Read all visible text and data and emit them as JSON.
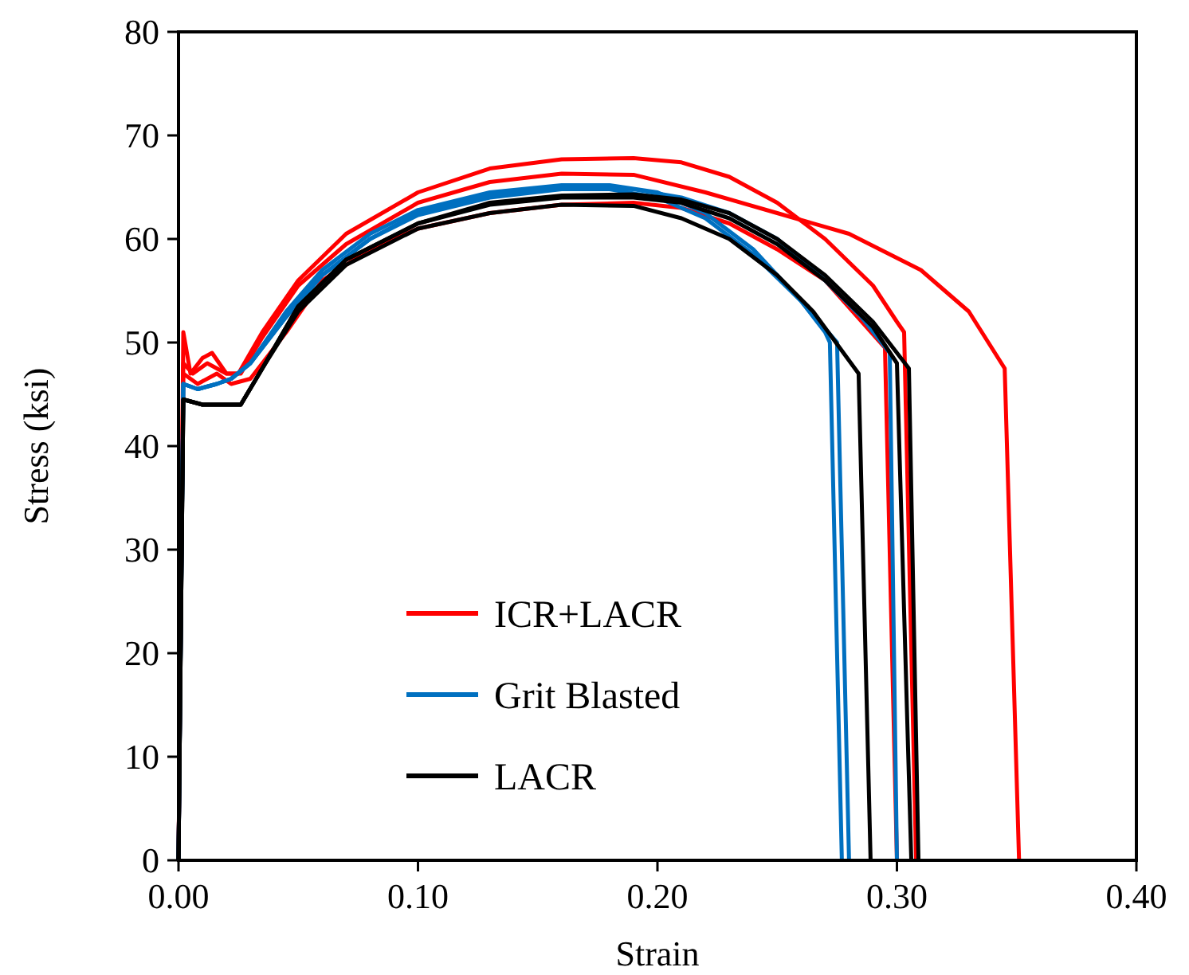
{
  "chart_data": {
    "type": "line",
    "xlabel": "Strain",
    "ylabel": "Stress (ksi)",
    "xlim": [
      0,
      0.4
    ],
    "ylim": [
      0,
      80
    ],
    "xticks": [
      {
        "value": 0,
        "label": "0.00"
      },
      {
        "value": 0.1,
        "label": "0.10"
      },
      {
        "value": 0.2,
        "label": "0.20"
      },
      {
        "value": 0.3,
        "label": "0.30"
      },
      {
        "value": 0.4,
        "label": "0.40"
      }
    ],
    "yticks": [
      0,
      10,
      20,
      30,
      40,
      50,
      60,
      70,
      80
    ],
    "grid": false,
    "legend": "bottom",
    "marker": "none",
    "line_style": "solid",
    "series": [
      {
        "name": "ICR+LACR",
        "color": "#ff0000",
        "x": [
          0,
          0.002,
          0.005,
          0.01,
          0.014,
          0.02,
          0.025,
          0.035,
          0.05,
          0.07,
          0.1,
          0.13,
          0.16,
          0.19,
          0.21,
          0.23,
          0.25,
          0.27,
          0.29,
          0.3,
          0.303,
          0.308
        ],
        "values": [
          0,
          51,
          47,
          48.5,
          49,
          47,
          47,
          51,
          56,
          60.5,
          64.5,
          66.8,
          67.7,
          67.8,
          67.4,
          66,
          63.5,
          60,
          55.5,
          52,
          51,
          0
        ]
      },
      {
        "color": "#ff0000",
        "x": [
          0,
          0.002,
          0.006,
          0.012,
          0.02,
          0.026,
          0.035,
          0.05,
          0.07,
          0.1,
          0.13,
          0.16,
          0.19,
          0.22,
          0.25,
          0.28,
          0.31,
          0.33,
          0.345,
          0.351
        ],
        "values": [
          0,
          48,
          47,
          48,
          47,
          47,
          50.5,
          55.5,
          59.5,
          63.5,
          65.5,
          66.3,
          66.2,
          64.5,
          62.5,
          60.5,
          57,
          53,
          47.5,
          0
        ]
      },
      {
        "color": "#ff0000",
        "x": [
          0,
          0.002,
          0.008,
          0.016,
          0.022,
          0.03,
          0.045,
          0.06,
          0.08,
          0.1,
          0.13,
          0.16,
          0.19,
          0.21,
          0.23,
          0.25,
          0.27,
          0.295,
          0.3
        ],
        "values": [
          0,
          47,
          46,
          47,
          46,
          46.5,
          51,
          56,
          59,
          61,
          62.5,
          63.3,
          63.5,
          63,
          61.5,
          59,
          56,
          49.5,
          0
        ]
      },
      {
        "name": "Grit Blasted",
        "color": "#0070c0",
        "x": [
          0,
          0.002,
          0.008,
          0.016,
          0.022,
          0.03,
          0.045,
          0.06,
          0.08,
          0.1,
          0.13,
          0.16,
          0.18,
          0.2,
          0.22,
          0.24,
          0.26,
          0.27,
          0.272,
          0.277
        ],
        "values": [
          0,
          46,
          45.5,
          46,
          46.5,
          48,
          53,
          57,
          60.5,
          62.8,
          64.5,
          65.2,
          65.2,
          64.5,
          62.5,
          59,
          54,
          51,
          50,
          0
        ]
      },
      {
        "color": "#0070c0",
        "x": [
          0,
          0.002,
          0.008,
          0.016,
          0.022,
          0.03,
          0.045,
          0.06,
          0.08,
          0.1,
          0.13,
          0.16,
          0.18,
          0.2,
          0.22,
          0.24,
          0.26,
          0.275,
          0.28
        ],
        "values": [
          0,
          46,
          45.5,
          46,
          46.5,
          48,
          52.5,
          56.5,
          60,
          62.3,
          64,
          64.8,
          64.8,
          64,
          62,
          58.5,
          54,
          50,
          0
        ]
      },
      {
        "color": "#0070c0",
        "x": [
          0,
          0.002,
          0.008,
          0.016,
          0.022,
          0.03,
          0.045,
          0.06,
          0.08,
          0.1,
          0.13,
          0.16,
          0.19,
          0.21,
          0.23,
          0.25,
          0.27,
          0.285,
          0.297,
          0.3
        ],
        "values": [
          0,
          46,
          45.5,
          46,
          46.5,
          48,
          52.5,
          56.5,
          60,
          62.5,
          64.3,
          65,
          64.8,
          64,
          62.5,
          60,
          56,
          52.5,
          49,
          0
        ]
      },
      {
        "name": "LACR",
        "color": "#000000",
        "x": [
          0,
          0.002,
          0.01,
          0.018,
          0.026,
          0.035,
          0.05,
          0.07,
          0.1,
          0.13,
          0.16,
          0.19,
          0.21,
          0.23,
          0.25,
          0.265,
          0.284,
          0.289
        ],
        "values": [
          0,
          44.5,
          44,
          44,
          44,
          47.5,
          53,
          57.5,
          61,
          62.5,
          63.3,
          63.2,
          62,
          60,
          56.5,
          53,
          47,
          0
        ]
      },
      {
        "color": "#000000",
        "x": [
          0,
          0.002,
          0.01,
          0.018,
          0.026,
          0.035,
          0.05,
          0.07,
          0.1,
          0.13,
          0.16,
          0.19,
          0.21,
          0.23,
          0.25,
          0.27,
          0.29,
          0.3,
          0.306
        ],
        "values": [
          0,
          44.5,
          44,
          44,
          44,
          47.5,
          53.5,
          58,
          61.5,
          63.3,
          64,
          64,
          63.5,
          62,
          59.5,
          56,
          51.5,
          48,
          0
        ]
      },
      {
        "color": "#000000",
        "x": [
          0,
          0.002,
          0.01,
          0.018,
          0.026,
          0.035,
          0.05,
          0.07,
          0.1,
          0.13,
          0.16,
          0.19,
          0.21,
          0.23,
          0.25,
          0.27,
          0.29,
          0.305,
          0.309
        ],
        "values": [
          0,
          44.5,
          44,
          44,
          44,
          47.5,
          53.5,
          58,
          61.5,
          63.5,
          64.2,
          64.3,
          63.8,
          62.5,
          60,
          56.5,
          52,
          47.5,
          0
        ]
      }
    ]
  }
}
